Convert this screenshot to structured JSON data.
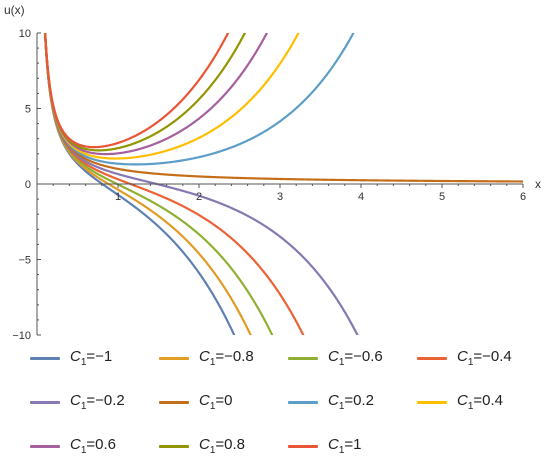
{
  "chart_data": {
    "type": "line",
    "title": "",
    "xlabel": "x",
    "ylabel": "u(x)",
    "xlim": [
      0,
      6
    ],
    "ylim": [
      -10,
      10
    ],
    "x_ticks": [
      1,
      2,
      3,
      4,
      5,
      6
    ],
    "y_ticks": [
      -10,
      -5,
      0,
      5,
      10
    ],
    "grid": false,
    "legend_position": "bottom",
    "series": [
      {
        "name": "C1=-1",
        "c1": -1.0,
        "color": "#5E81B5",
        "label_prefix": "C",
        "label_sub": "1",
        "label_value": "=−1"
      },
      {
        "name": "C1=-0.8",
        "c1": -0.8,
        "color": "#E19C24",
        "label_prefix": "C",
        "label_sub": "1",
        "label_value": "=−0.8"
      },
      {
        "name": "C1=-0.6",
        "c1": -0.6,
        "color": "#8FB032",
        "label_prefix": "C",
        "label_sub": "1",
        "label_value": "=−0.6"
      },
      {
        "name": "C1=-0.4",
        "c1": -0.4,
        "color": "#EB6235",
        "label_prefix": "C",
        "label_sub": "1",
        "label_value": "=−0.4"
      },
      {
        "name": "C1=-0.2",
        "c1": -0.2,
        "color": "#8778B3",
        "label_prefix": "C",
        "label_sub": "1",
        "label_value": "=−0.2"
      },
      {
        "name": "C1=0",
        "c1": 0.0,
        "color": "#C56E1A",
        "label_prefix": "C",
        "label_sub": "1",
        "label_value": "=0"
      },
      {
        "name": "C1=0.2",
        "c1": 0.2,
        "color": "#5D9EC7",
        "label_prefix": "C",
        "label_sub": "1",
        "label_value": "=0.2"
      },
      {
        "name": "C1=0.4",
        "c1": 0.4,
        "color": "#FFBF00",
        "label_prefix": "C",
        "label_sub": "1",
        "label_value": "=0.4"
      },
      {
        "name": "C1=0.6",
        "c1": 0.6,
        "color": "#A5609D",
        "label_prefix": "C",
        "label_sub": "1",
        "label_value": "=0.6"
      },
      {
        "name": "C1=0.8",
        "c1": 0.8,
        "color": "#929600",
        "label_prefix": "C",
        "label_sub": "1",
        "label_value": "=0.8"
      },
      {
        "name": "C1=1",
        "c1": 1.0,
        "color": "#E95536",
        "label_prefix": "C",
        "label_sub": "1",
        "label_value": "=1"
      }
    ]
  }
}
